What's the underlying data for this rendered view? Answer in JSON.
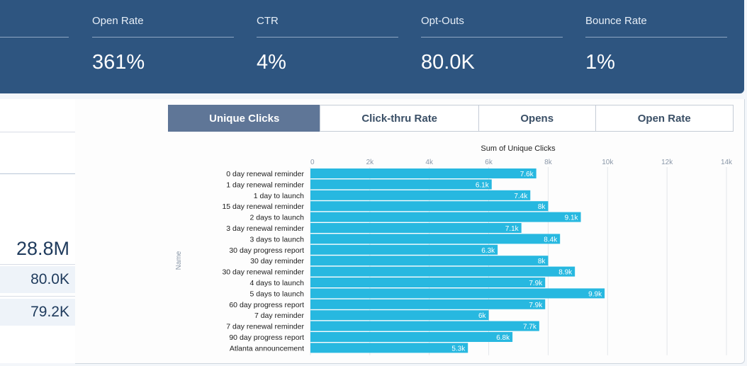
{
  "metrics": [
    {
      "label": "Open Rate",
      "value": "361%"
    },
    {
      "label": "CTR",
      "value": "4%"
    },
    {
      "label": "Opt-Outs",
      "value": "80.0K"
    },
    {
      "label": "Bounce Rate",
      "value": "1%"
    }
  ],
  "left_panel": {
    "values": [
      "28.8M",
      "80.0K",
      "79.2K"
    ]
  },
  "tabs": [
    {
      "label": "Unique Clicks",
      "active": true
    },
    {
      "label": "Click-thru Rate",
      "active": false
    },
    {
      "label": "Opens",
      "active": false
    },
    {
      "label": "Open Rate",
      "active": false
    }
  ],
  "colors": {
    "header_bg": "#2e5580",
    "bar": "#27b8e0",
    "active_tab": "#5f7697"
  },
  "chart_data": {
    "type": "bar",
    "orientation": "horizontal",
    "title": "Sum of Unique Clicks",
    "ylabel": "Name",
    "xlim": [
      0,
      14000
    ],
    "x_ticks": [
      "0",
      "2k",
      "4k",
      "6k",
      "8k",
      "10k",
      "12k",
      "14k"
    ],
    "grid": true,
    "categories": [
      "0 day renewal reminder",
      "1 day renewal reminder",
      "1 day to launch",
      "15 day renewal reminder",
      "2 days to launch",
      "3 day renewal reminder",
      "3 days to launch",
      "30 day progress report",
      "30 day reminder",
      "30 day renewal reminder",
      "4 days to launch",
      "5 days to launch",
      "60 day progress report",
      "7 day reminder",
      "7 day renewal reminder",
      "90 day progress report",
      "Atlanta announcement"
    ],
    "values": [
      7600,
      6100,
      7400,
      8000,
      9100,
      7100,
      8400,
      6300,
      8000,
      8900,
      7900,
      9900,
      7900,
      6000,
      7700,
      6800,
      5300
    ],
    "data_labels": [
      "7.6k",
      "6.1k",
      "7.4k",
      "8k",
      "9.1k",
      "7.1k",
      "8.4k",
      "6.3k",
      "8k",
      "8.9k",
      "7.9k",
      "9.9k",
      "7.9k",
      "6k",
      "7.7k",
      "6.8k",
      "5.3k"
    ]
  }
}
